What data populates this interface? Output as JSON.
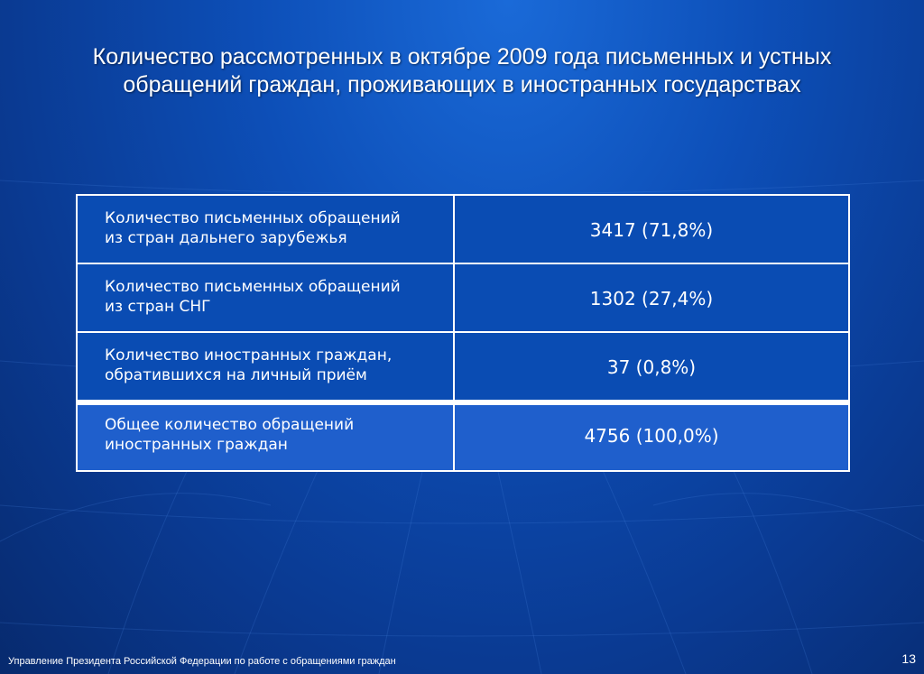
{
  "slide": {
    "title_line1": "Количество рассмотренных в октябре 2009 года письменных и устных",
    "title_line2": "обращений граждан, проживающих в иностранных государствах"
  },
  "table": {
    "rows": [
      {
        "label_line1": "Количество письменных обращений",
        "label_line2": "из стран дальнего зарубежья",
        "value": "3417 (71,8%)"
      },
      {
        "label_line1": "Количество письменных обращений",
        "label_line2": "из стран СНГ",
        "value": "1302 (27,4%)"
      },
      {
        "label_line1": "Количество иностранных граждан,",
        "label_line2": "обратившихся на личный приём",
        "value": "37 (0,8%)"
      },
      {
        "label_line1": "Общее количество обращений",
        "label_line2": "иностранных граждан",
        "value": "4756 (100,0%)"
      }
    ]
  },
  "footer": {
    "organization": "Управление Президента Российской Федерации по работе с обращениями граждан",
    "page_number": "13"
  },
  "colors": {
    "background_light": "#1a6ad8",
    "background_dark": "#072a6e",
    "cell_fill": "#0a4cb3",
    "total_row_fill": "#1f5fcc",
    "text": "#ffffff"
  }
}
